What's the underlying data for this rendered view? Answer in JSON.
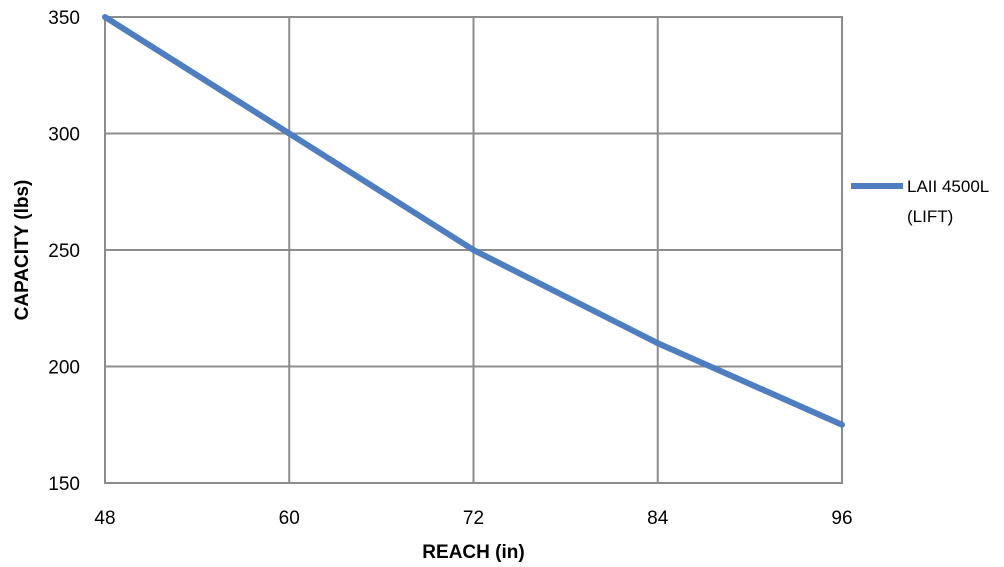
{
  "chart_data": {
    "type": "line",
    "title": "",
    "xlabel": "REACH (in)",
    "ylabel": "CAPACITY (lbs)",
    "xlim": [
      48,
      96
    ],
    "ylim": [
      150,
      350
    ],
    "xticks": [
      48,
      60,
      72,
      84,
      96
    ],
    "yticks": [
      150,
      200,
      250,
      300,
      350
    ],
    "grid": true,
    "legend_position": "right",
    "series": [
      {
        "name": "LAII 4500L (LIFT)",
        "legend_lines": [
          "LAII 4500L",
          "(LIFT)"
        ],
        "color": "#4F7EC0",
        "x": [
          48,
          60,
          72,
          84,
          96
        ],
        "y": [
          350,
          300,
          250,
          210,
          175
        ]
      }
    ]
  }
}
